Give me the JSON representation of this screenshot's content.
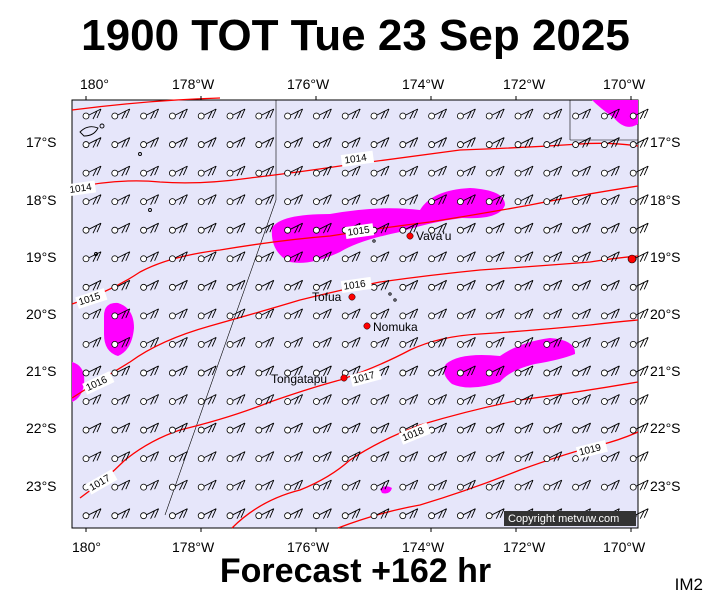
{
  "title": "1900 TOT Tue 23 Sep 2025",
  "footer": "Forecast +162 hr",
  "tag": "IM2",
  "copyright": "Copyright metvuw.com",
  "axes": {
    "top_lon": [
      "180°",
      "178°W",
      "176°W",
      "174°W",
      "172°W",
      "170°W"
    ],
    "bottom_lon": [
      "180°",
      "178°W",
      "176°W",
      "174°W",
      "172°W",
      "170°W"
    ],
    "left_lat": [
      "17°S",
      "18°S",
      "19°S",
      "20°S",
      "21°S",
      "22°S",
      "23°S"
    ],
    "right_lat": [
      "17°S",
      "18°S",
      "19°S",
      "20°S",
      "21°S",
      "22°S",
      "23°S"
    ]
  },
  "places": [
    {
      "name": "Vava'u",
      "lon": -174.0,
      "lat": -18.65
    },
    {
      "name": "Tofua",
      "lon": -175.05,
      "lat": -19.75
    },
    {
      "name": "Nomuka",
      "lon": -174.8,
      "lat": -20.25
    },
    {
      "name": "Tongatapu",
      "lon": -175.2,
      "lat": -21.15
    }
  ],
  "isobar_labels": [
    "1014",
    "1014",
    "1015",
    "1015",
    "1016",
    "1016",
    "1017",
    "1017",
    "1018",
    "1019"
  ],
  "colors": {
    "ocean": "#e6e6fa",
    "isobar": "#ff0000",
    "rain": "#ff00ff",
    "place_marker": "#ff0000"
  }
}
